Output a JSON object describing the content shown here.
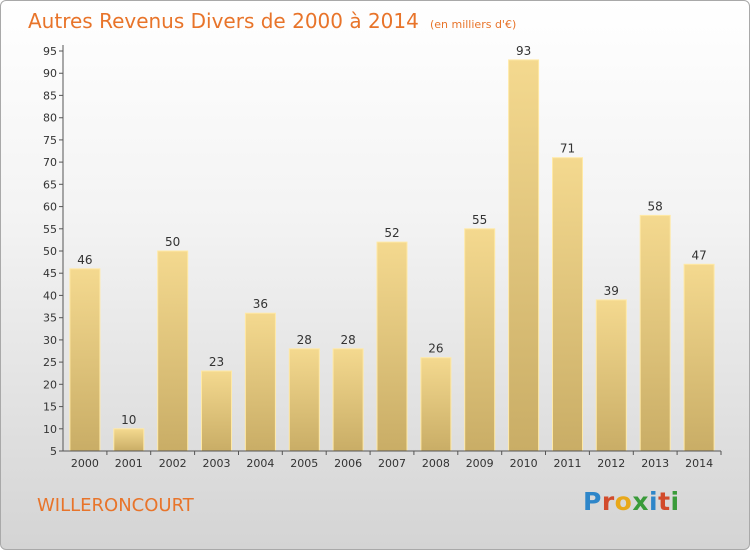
{
  "title": "Autres Revenus Divers de 2000 à 2014",
  "unit": "(en milliers d'€)",
  "commune": "WILLERONCOURT",
  "logo": {
    "letters": [
      "P",
      "r",
      "o",
      "x",
      "i",
      "t",
      "i"
    ],
    "colors": [
      "#2e86c9",
      "#d24b2b",
      "#e8a81a",
      "#3a9b3a",
      "#2e86c9",
      "#d24b2b",
      "#3a9b3a"
    ]
  },
  "chart_data": {
    "type": "bar",
    "title": "Autres Revenus Divers de 2000 à 2014",
    "categories": [
      "2000",
      "2001",
      "2002",
      "2003",
      "2004",
      "2005",
      "2006",
      "2007",
      "2008",
      "2009",
      "2010",
      "2011",
      "2012",
      "2013",
      "2014"
    ],
    "values": [
      46,
      10,
      50,
      23,
      36,
      28,
      28,
      52,
      26,
      55,
      93,
      71,
      39,
      58,
      47
    ],
    "ylim": [
      5,
      95
    ],
    "yticks": [
      5,
      10,
      15,
      20,
      25,
      30,
      35,
      40,
      45,
      50,
      55,
      60,
      65,
      70,
      75,
      80,
      85,
      90,
      95
    ],
    "grid": false,
    "bar_color": "#f0d58f"
  }
}
